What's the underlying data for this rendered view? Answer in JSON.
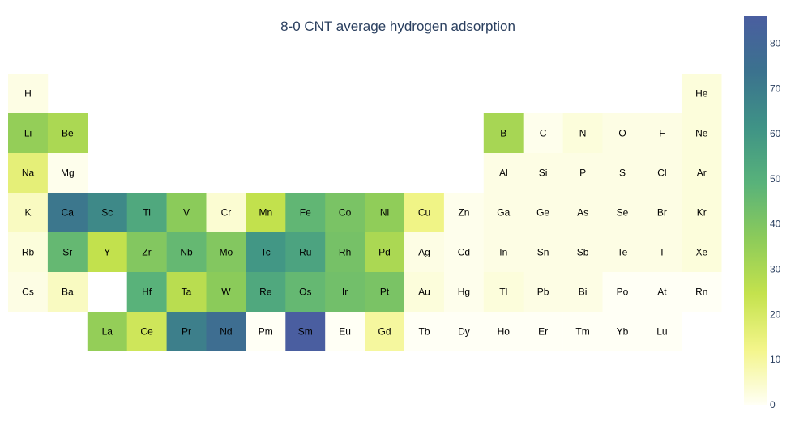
{
  "chart_data": {
    "type": "heatmap",
    "title": "8-0 CNT average hydrogen adsorption",
    "colorbar": {
      "range": [
        0,
        86
      ],
      "ticks": [
        0,
        10,
        20,
        30,
        40,
        50,
        60,
        70,
        80
      ],
      "colorscale": [
        "#fffff5",
        "#f3f58a",
        "#c4e24d",
        "#8ccb5a",
        "#58b27a",
        "#3f9386",
        "#3b728e",
        "#4a5ea0"
      ]
    },
    "elements": [
      {
        "symbol": "H",
        "row": 1,
        "col": 1,
        "value": 2
      },
      {
        "symbol": "He",
        "row": 1,
        "col": 18,
        "value": 3
      },
      {
        "symbol": "Li",
        "row": 2,
        "col": 1,
        "value": 35
      },
      {
        "symbol": "Be",
        "row": 2,
        "col": 2,
        "value": 30
      },
      {
        "symbol": "B",
        "row": 2,
        "col": 13,
        "value": 31
      },
      {
        "symbol": "C",
        "row": 2,
        "col": 14,
        "value": 1
      },
      {
        "symbol": "N",
        "row": 2,
        "col": 15,
        "value": 3
      },
      {
        "symbol": "O",
        "row": 2,
        "col": 16,
        "value": 2
      },
      {
        "symbol": "F",
        "row": 2,
        "col": 17,
        "value": 2
      },
      {
        "symbol": "Ne",
        "row": 2,
        "col": 18,
        "value": 3
      },
      {
        "symbol": "Na",
        "row": 3,
        "col": 1,
        "value": 16
      },
      {
        "symbol": "Mg",
        "row": 3,
        "col": 2,
        "value": 1
      },
      {
        "symbol": "Al",
        "row": 3,
        "col": 13,
        "value": 2
      },
      {
        "symbol": "Si",
        "row": 3,
        "col": 14,
        "value": 2
      },
      {
        "symbol": "P",
        "row": 3,
        "col": 15,
        "value": 2
      },
      {
        "symbol": "S",
        "row": 3,
        "col": 16,
        "value": 2
      },
      {
        "symbol": "Cl",
        "row": 3,
        "col": 17,
        "value": 2
      },
      {
        "symbol": "Ar",
        "row": 3,
        "col": 18,
        "value": 3
      },
      {
        "symbol": "K",
        "row": 4,
        "col": 1,
        "value": 6
      },
      {
        "symbol": "Ca",
        "row": 4,
        "col": 2,
        "value": 72
      },
      {
        "symbol": "Sc",
        "row": 4,
        "col": 3,
        "value": 65
      },
      {
        "symbol": "Ti",
        "row": 4,
        "col": 4,
        "value": 53
      },
      {
        "symbol": "V",
        "row": 4,
        "col": 5,
        "value": 37
      },
      {
        "symbol": "Cr",
        "row": 4,
        "col": 6,
        "value": 4
      },
      {
        "symbol": "Mn",
        "row": 4,
        "col": 7,
        "value": 25
      },
      {
        "symbol": "Fe",
        "row": 4,
        "col": 8,
        "value": 47
      },
      {
        "symbol": "Co",
        "row": 4,
        "col": 9,
        "value": 41
      },
      {
        "symbol": "Ni",
        "row": 4,
        "col": 10,
        "value": 36
      },
      {
        "symbol": "Cu",
        "row": 4,
        "col": 11,
        "value": 13
      },
      {
        "symbol": "Zn",
        "row": 4,
        "col": 12,
        "value": 1
      },
      {
        "symbol": "Ga",
        "row": 4,
        "col": 13,
        "value": 2
      },
      {
        "symbol": "Ge",
        "row": 4,
        "col": 14,
        "value": 2
      },
      {
        "symbol": "As",
        "row": 4,
        "col": 15,
        "value": 2
      },
      {
        "symbol": "Se",
        "row": 4,
        "col": 16,
        "value": 2
      },
      {
        "symbol": "Br",
        "row": 4,
        "col": 17,
        "value": 2
      },
      {
        "symbol": "Kr",
        "row": 4,
        "col": 18,
        "value": 3
      },
      {
        "symbol": "Rb",
        "row": 5,
        "col": 1,
        "value": 3
      },
      {
        "symbol": "Sr",
        "row": 5,
        "col": 2,
        "value": 46
      },
      {
        "symbol": "Y",
        "row": 5,
        "col": 3,
        "value": 25
      },
      {
        "symbol": "Zr",
        "row": 5,
        "col": 4,
        "value": 39
      },
      {
        "symbol": "Nb",
        "row": 5,
        "col": 5,
        "value": 46
      },
      {
        "symbol": "Mo",
        "row": 5,
        "col": 6,
        "value": 39
      },
      {
        "symbol": "Tc",
        "row": 5,
        "col": 7,
        "value": 60
      },
      {
        "symbol": "Ru",
        "row": 5,
        "col": 8,
        "value": 55
      },
      {
        "symbol": "Rh",
        "row": 5,
        "col": 9,
        "value": 42
      },
      {
        "symbol": "Pd",
        "row": 5,
        "col": 10,
        "value": 30
      },
      {
        "symbol": "Ag",
        "row": 5,
        "col": 11,
        "value": 2
      },
      {
        "symbol": "Cd",
        "row": 5,
        "col": 12,
        "value": 1
      },
      {
        "symbol": "In",
        "row": 5,
        "col": 13,
        "value": 2
      },
      {
        "symbol": "Sn",
        "row": 5,
        "col": 14,
        "value": 2
      },
      {
        "symbol": "Sb",
        "row": 5,
        "col": 15,
        "value": 2
      },
      {
        "symbol": "Te",
        "row": 5,
        "col": 16,
        "value": 2
      },
      {
        "symbol": "I",
        "row": 5,
        "col": 17,
        "value": 2
      },
      {
        "symbol": "Xe",
        "row": 5,
        "col": 18,
        "value": 3
      },
      {
        "symbol": "Cs",
        "row": 6,
        "col": 1,
        "value": 2
      },
      {
        "symbol": "Ba",
        "row": 6,
        "col": 2,
        "value": 6
      },
      {
        "symbol": "Hf",
        "row": 6,
        "col": 4,
        "value": 49
      },
      {
        "symbol": "Ta",
        "row": 6,
        "col": 5,
        "value": 27
      },
      {
        "symbol": "W",
        "row": 6,
        "col": 6,
        "value": 37
      },
      {
        "symbol": "Re",
        "row": 6,
        "col": 7,
        "value": 53
      },
      {
        "symbol": "Os",
        "row": 6,
        "col": 8,
        "value": 46
      },
      {
        "symbol": "Ir",
        "row": 6,
        "col": 9,
        "value": 43
      },
      {
        "symbol": "Pt",
        "row": 6,
        "col": 10,
        "value": 41
      },
      {
        "symbol": "Au",
        "row": 6,
        "col": 11,
        "value": 3
      },
      {
        "symbol": "Hg",
        "row": 6,
        "col": 12,
        "value": 1
      },
      {
        "symbol": "Tl",
        "row": 6,
        "col": 13,
        "value": 3
      },
      {
        "symbol": "Pb",
        "row": 6,
        "col": 14,
        "value": 2
      },
      {
        "symbol": "Bi",
        "row": 6,
        "col": 15,
        "value": 2
      },
      {
        "symbol": "Po",
        "row": 6,
        "col": 16,
        "value": 0
      },
      {
        "symbol": "At",
        "row": 6,
        "col": 17,
        "value": 0
      },
      {
        "symbol": "Rn",
        "row": 6,
        "col": 18,
        "value": 0
      },
      {
        "symbol": "La",
        "row": 7,
        "col": 3,
        "value": 35
      },
      {
        "symbol": "Ce",
        "row": 7,
        "col": 4,
        "value": 22
      },
      {
        "symbol": "Pr",
        "row": 7,
        "col": 5,
        "value": 69
      },
      {
        "symbol": "Nd",
        "row": 7,
        "col": 6,
        "value": 76
      },
      {
        "symbol": "Pm",
        "row": 7,
        "col": 7,
        "value": 0
      },
      {
        "symbol": "Sm",
        "row": 7,
        "col": 8,
        "value": 86
      },
      {
        "symbol": "Eu",
        "row": 7,
        "col": 9,
        "value": 0
      },
      {
        "symbol": "Gd",
        "row": 7,
        "col": 10,
        "value": 10
      },
      {
        "symbol": "Tb",
        "row": 7,
        "col": 11,
        "value": 0
      },
      {
        "symbol": "Dy",
        "row": 7,
        "col": 12,
        "value": 0
      },
      {
        "symbol": "Ho",
        "row": 7,
        "col": 13,
        "value": 0
      },
      {
        "symbol": "Er",
        "row": 7,
        "col": 14,
        "value": 0
      },
      {
        "symbol": "Tm",
        "row": 7,
        "col": 15,
        "value": 0
      },
      {
        "symbol": "Yb",
        "row": 7,
        "col": 16,
        "value": 0
      },
      {
        "symbol": "Lu",
        "row": 7,
        "col": 17,
        "value": 0
      }
    ]
  }
}
